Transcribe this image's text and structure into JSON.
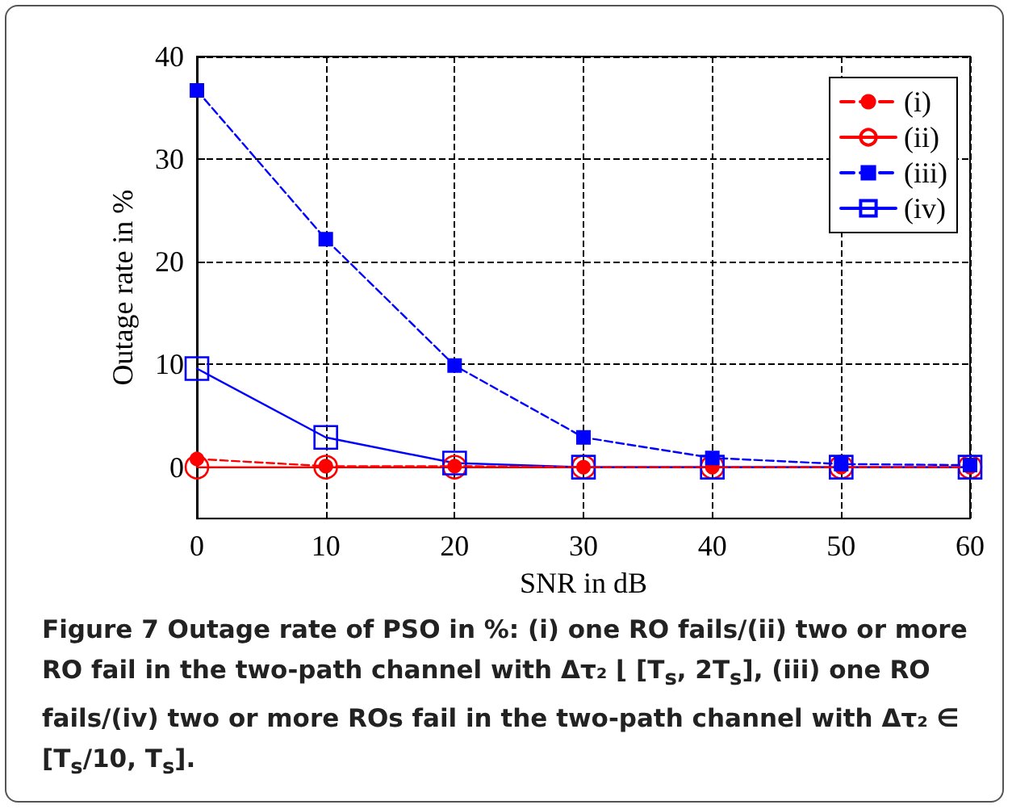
{
  "chart_data": {
    "type": "line",
    "xlabel": "SNR in dB",
    "ylabel": "Outage rate in %",
    "x": [
      0,
      10,
      20,
      30,
      40,
      50,
      60
    ],
    "series": [
      {
        "name": "(i)",
        "color": "#ff0000",
        "marker": "circle",
        "line_style": "dashed",
        "values": [
          0.8,
          0.1,
          0.1,
          0,
          0,
          0,
          0
        ]
      },
      {
        "name": "(ii)",
        "color": "#ff0000",
        "marker": "circle",
        "line_style": "solid",
        "values": [
          0,
          0,
          0,
          0,
          0,
          0,
          0
        ]
      },
      {
        "name": "(iii)",
        "color": "#0000ff",
        "marker": "square",
        "line_style": "dashed",
        "values": [
          36.7,
          22.2,
          9.9,
          2.9,
          0.9,
          0.3,
          0.2
        ]
      },
      {
        "name": "(iv)",
        "color": "#0000ff",
        "marker": "square",
        "line_style": "solid",
        "values": [
          9.6,
          2.9,
          0.4,
          0,
          0,
          0,
          0
        ]
      }
    ],
    "xlim": [
      0,
      60
    ],
    "xticks": [
      0,
      10,
      20,
      30,
      40,
      50,
      60
    ],
    "ylim": [
      -5,
      40
    ],
    "yticks": [
      0,
      10,
      20,
      30,
      40
    ],
    "grid": true,
    "legend": "top right",
    "annotations": [
      "Figure 7 Outage rate of PSO in %: (i) one RO fails/(ii) two or more RO fail in the two-path channel with Δτ₂ ⌊ [T$_{s}$, 2T$_{s}$], (iii) one RO fails/(iv) two or more ROs fail in the two-path channel with Δτ₂ ∈ [T$_{s}$/10, T$_{s}$]."
    ]
  }
}
